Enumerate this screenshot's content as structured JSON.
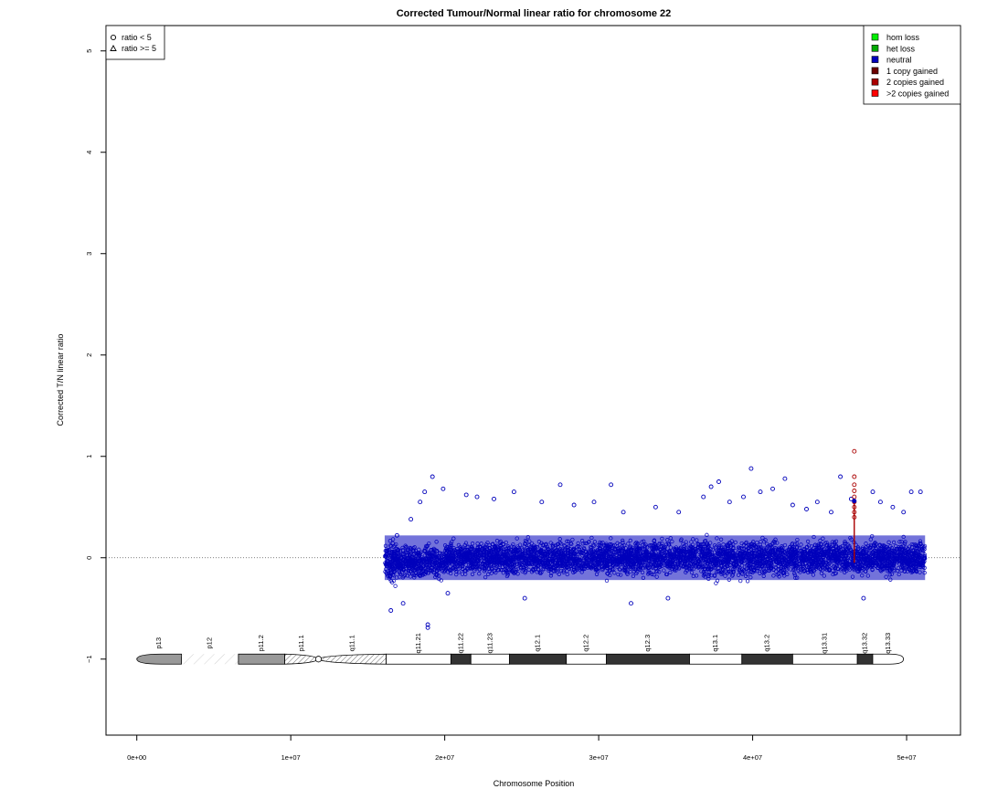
{
  "chart_data": {
    "type": "scatter",
    "title": "Corrected Tumour/Normal linear ratio for chromosome  22",
    "xlabel": "Chromosome Position",
    "ylabel": "Corrected T/N linear ratio",
    "xlim": [
      -2000000,
      53500000
    ],
    "ylim": [
      -1.75,
      5.25
    ],
    "x_ticks": [
      {
        "value": 0,
        "label": "0e+00"
      },
      {
        "value": 10000000,
        "label": "1e+07"
      },
      {
        "value": 20000000,
        "label": "2e+07"
      },
      {
        "value": 30000000,
        "label": "3e+07"
      },
      {
        "value": 40000000,
        "label": "4e+07"
      },
      {
        "value": 50000000,
        "label": "5e+07"
      }
    ],
    "y_ticks": [
      {
        "value": -1,
        "label": "−1"
      },
      {
        "value": 0,
        "label": "0"
      },
      {
        "value": 1,
        "label": "1"
      },
      {
        "value": 2,
        "label": "2"
      },
      {
        "value": 3,
        "label": "3"
      },
      {
        "value": 4,
        "label": "4"
      },
      {
        "value": 5,
        "label": "5"
      }
    ],
    "reference_line": {
      "y": 0,
      "style": "dotted"
    },
    "data_range": {
      "x_min": 16100000,
      "x_max": 51200000
    },
    "shape_legend": {
      "placement": "top-left",
      "items": [
        {
          "shape": "circle",
          "label": "ratio < 5"
        },
        {
          "shape": "triangle",
          "label": "ratio >= 5"
        }
      ]
    },
    "color_legend": {
      "placement": "top-right",
      "items": [
        {
          "label": "hom loss",
          "color": "#00ee00"
        },
        {
          "label": "het loss",
          "color": "#00aa00"
        },
        {
          "label": "neutral",
          "color": "#0000bb"
        },
        {
          "label": "1 copy gained",
          "color": "#6b0000"
        },
        {
          "label": "2 copies gained",
          "color": "#aa0000"
        },
        {
          "label": ">2 copies gained",
          "color": "#ff0000"
        }
      ]
    },
    "series": [
      {
        "name": "neutral",
        "color": "#0000bb",
        "points": [
          [
            16500000,
            -0.52
          ],
          [
            16900000,
            0.22
          ],
          [
            17300000,
            -0.45
          ],
          [
            17800000,
            0.38
          ],
          [
            18400000,
            0.55
          ],
          [
            18700000,
            0.65
          ],
          [
            18900000,
            -0.66
          ],
          [
            18900000,
            -0.69
          ],
          [
            19200000,
            0.8
          ],
          [
            19900000,
            0.68
          ],
          [
            20200000,
            -0.35
          ],
          [
            21400000,
            0.62
          ],
          [
            22100000,
            0.6
          ],
          [
            23200000,
            0.58
          ],
          [
            24500000,
            0.65
          ],
          [
            25200000,
            -0.4
          ],
          [
            26300000,
            0.55
          ],
          [
            27500000,
            0.72
          ],
          [
            28400000,
            0.52
          ],
          [
            29700000,
            0.55
          ],
          [
            30800000,
            0.72
          ],
          [
            31600000,
            0.45
          ],
          [
            32100000,
            -0.45
          ],
          [
            33700000,
            0.5
          ],
          [
            34500000,
            -0.4
          ],
          [
            35200000,
            0.45
          ],
          [
            36800000,
            0.6
          ],
          [
            37300000,
            0.7
          ],
          [
            37800000,
            0.75
          ],
          [
            38500000,
            0.55
          ],
          [
            39400000,
            0.6
          ],
          [
            39900000,
            0.88
          ],
          [
            40500000,
            0.65
          ],
          [
            41300000,
            0.68
          ],
          [
            42100000,
            0.78
          ],
          [
            42600000,
            0.52
          ],
          [
            43500000,
            0.48
          ],
          [
            44200000,
            0.55
          ],
          [
            45100000,
            0.45
          ],
          [
            45700000,
            0.8
          ],
          [
            46400000,
            0.58
          ],
          [
            47200000,
            -0.4
          ],
          [
            47800000,
            0.65
          ],
          [
            48300000,
            0.55
          ],
          [
            49100000,
            0.5
          ],
          [
            49800000,
            0.45
          ],
          [
            50300000,
            0.65
          ],
          [
            50900000,
            0.65
          ]
        ]
      },
      {
        "name": "2 copies gained",
        "color": "#aa0000",
        "points": [
          [
            46600000,
            1.05
          ],
          [
            46600000,
            0.8
          ],
          [
            46600000,
            0.72
          ],
          [
            46600000,
            0.66
          ],
          [
            46600000,
            0.6
          ],
          [
            46600000,
            0.55
          ],
          [
            46600000,
            0.5
          ],
          [
            46600000,
            0.45
          ],
          [
            46600000,
            0.4
          ]
        ]
      }
    ],
    "bands": [
      {
        "name": "p13",
        "start": 0,
        "end": 2900000,
        "fill": "#999999",
        "pattern": "solid"
      },
      {
        "name": "p12",
        "start": 2900000,
        "end": 6600000,
        "fill": "none",
        "pattern": "sparse-hatch"
      },
      {
        "name": "p11.2",
        "start": 6600000,
        "end": 9600000,
        "fill": "#999999",
        "pattern": "solid"
      },
      {
        "name": "p11.1",
        "start": 9600000,
        "end": 11800000,
        "fill": "none",
        "pattern": "hatch"
      },
      {
        "name": "q11.1",
        "start": 11800000,
        "end": 16200000,
        "fill": "none",
        "pattern": "hatch"
      },
      {
        "name": "q11.21",
        "start": 16200000,
        "end": 20400000,
        "fill": "#ffffff",
        "pattern": "solid"
      },
      {
        "name": "q11.22",
        "start": 20400000,
        "end": 21700000,
        "fill": "#333333",
        "pattern": "solid"
      },
      {
        "name": "q11.23",
        "start": 21700000,
        "end": 24200000,
        "fill": "#ffffff",
        "pattern": "solid"
      },
      {
        "name": "q12.1",
        "start": 24200000,
        "end": 27900000,
        "fill": "#333333",
        "pattern": "solid"
      },
      {
        "name": "q12.2",
        "start": 27900000,
        "end": 30500000,
        "fill": "#ffffff",
        "pattern": "solid"
      },
      {
        "name": "q12.3",
        "start": 30500000,
        "end": 35900000,
        "fill": "#333333",
        "pattern": "solid"
      },
      {
        "name": "q13.1",
        "start": 35900000,
        "end": 39300000,
        "fill": "#ffffff",
        "pattern": "solid"
      },
      {
        "name": "q13.2",
        "start": 39300000,
        "end": 42600000,
        "fill": "#333333",
        "pattern": "solid"
      },
      {
        "name": "q13.31",
        "start": 42600000,
        "end": 46800000,
        "fill": "#ffffff",
        "pattern": "solid"
      },
      {
        "name": "q13.32",
        "start": 46800000,
        "end": 47800000,
        "fill": "#333333",
        "pattern": "solid"
      },
      {
        "name": "q13.33",
        "start": 47800000,
        "end": 49800000,
        "fill": "#ffffff",
        "pattern": "solid"
      }
    ],
    "centromere": 11800000
  }
}
